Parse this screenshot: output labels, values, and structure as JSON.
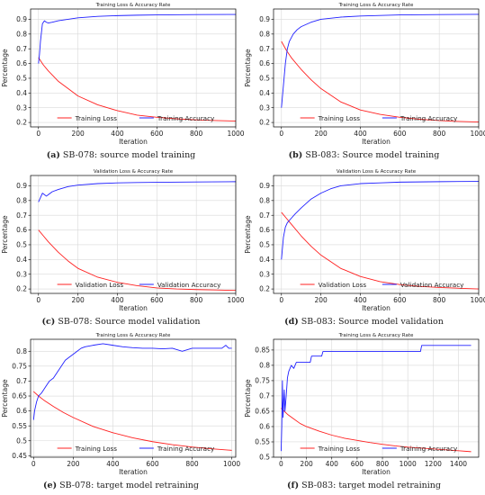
{
  "chart_data": [
    {
      "type": "line",
      "id": "a",
      "title": "Training Loss & Accuracy Rate",
      "xlabel": "Iteration",
      "ylabel": "Percentage",
      "xlim": [
        -40,
        1000
      ],
      "ylim": [
        0.17,
        0.97
      ],
      "xticks": [
        0,
        200,
        400,
        600,
        800,
        1000
      ],
      "yticks": [
        0.2,
        0.3,
        0.4,
        0.5,
        0.6,
        0.7,
        0.8,
        0.9
      ],
      "grid": true,
      "legend_position": "bottom-right",
      "caption_label": "(a)",
      "caption_text": " SB-078: source model training",
      "series": [
        {
          "name": "Training Loss",
          "color": "#ff2020",
          "x": [
            0,
            25,
            50,
            100,
            150,
            200,
            300,
            400,
            500,
            600,
            700,
            800,
            900,
            1000
          ],
          "y": [
            0.64,
            0.59,
            0.55,
            0.48,
            0.43,
            0.38,
            0.32,
            0.28,
            0.25,
            0.235,
            0.225,
            0.218,
            0.213,
            0.21
          ]
        },
        {
          "name": "Training Accuracy",
          "color": "#2020ff",
          "x": [
            0,
            5,
            10,
            20,
            30,
            40,
            50,
            70,
            100,
            150,
            200,
            300,
            400,
            500,
            600,
            800,
            1000
          ],
          "y": [
            0.6,
            0.66,
            0.75,
            0.87,
            0.89,
            0.88,
            0.875,
            0.88,
            0.89,
            0.9,
            0.91,
            0.92,
            0.925,
            0.928,
            0.93,
            0.932,
            0.933
          ]
        }
      ]
    },
    {
      "type": "line",
      "id": "b",
      "title": "Training Loss & Accuracy Rate",
      "xlabel": "Iteration",
      "ylabel": "Percentage",
      "xlim": [
        -40,
        1000
      ],
      "ylim": [
        0.17,
        0.97
      ],
      "xticks": [
        0,
        200,
        400,
        600,
        800,
        1000
      ],
      "yticks": [
        0.2,
        0.3,
        0.4,
        0.5,
        0.6,
        0.7,
        0.8,
        0.9
      ],
      "grid": true,
      "legend_position": "bottom-right",
      "caption_label": "(b)",
      "caption_text": " SB-083: Source model training",
      "series": [
        {
          "name": "Training Loss",
          "color": "#ff2020",
          "x": [
            0,
            25,
            50,
            100,
            150,
            200,
            300,
            400,
            500,
            600,
            700,
            800,
            900,
            1000
          ],
          "y": [
            0.75,
            0.69,
            0.64,
            0.56,
            0.49,
            0.43,
            0.34,
            0.285,
            0.255,
            0.235,
            0.222,
            0.213,
            0.207,
            0.203
          ]
        },
        {
          "name": "Training Accuracy",
          "color": "#2020ff",
          "x": [
            0,
            10,
            20,
            30,
            40,
            60,
            80,
            100,
            150,
            200,
            300,
            400,
            500,
            600,
            800,
            1000
          ],
          "y": [
            0.3,
            0.45,
            0.6,
            0.7,
            0.75,
            0.8,
            0.83,
            0.85,
            0.88,
            0.9,
            0.915,
            0.922,
            0.926,
            0.93,
            0.932,
            0.934
          ]
        }
      ]
    },
    {
      "type": "line",
      "id": "c",
      "title": "Validation Loss & Accuracy Rate",
      "xlabel": "Iteration",
      "ylabel": "Percentage",
      "xlim": [
        -40,
        1000
      ],
      "ylim": [
        0.17,
        0.97
      ],
      "xticks": [
        0,
        200,
        400,
        600,
        800,
        1000
      ],
      "yticks": [
        0.2,
        0.3,
        0.4,
        0.5,
        0.6,
        0.7,
        0.8,
        0.9
      ],
      "grid": true,
      "legend_position": "bottom-right",
      "caption_label": "(c)",
      "caption_text": " SB-078: Source model validation",
      "series": [
        {
          "name": "Validation Loss",
          "color": "#ff2020",
          "x": [
            0,
            25,
            50,
            100,
            150,
            200,
            300,
            400,
            500,
            600,
            700,
            800,
            900,
            1000
          ],
          "y": [
            0.6,
            0.56,
            0.52,
            0.45,
            0.39,
            0.34,
            0.28,
            0.245,
            0.222,
            0.207,
            0.2,
            0.196,
            0.193,
            0.19
          ]
        },
        {
          "name": "Validation Accuracy",
          "color": "#2020ff",
          "x": [
            0,
            10,
            20,
            30,
            40,
            50,
            70,
            100,
            150,
            200,
            300,
            400,
            500,
            600,
            800,
            1000
          ],
          "y": [
            0.79,
            0.82,
            0.85,
            0.84,
            0.83,
            0.84,
            0.86,
            0.875,
            0.895,
            0.905,
            0.915,
            0.92,
            0.922,
            0.924,
            0.926,
            0.928
          ]
        }
      ]
    },
    {
      "type": "line",
      "id": "d",
      "title": "Validation Loss & Accuracy Rate",
      "xlabel": "Iteration",
      "ylabel": "Percentage",
      "xlim": [
        -40,
        1000
      ],
      "ylim": [
        0.17,
        0.97
      ],
      "xticks": [
        0,
        200,
        400,
        600,
        800,
        1000
      ],
      "yticks": [
        0.2,
        0.3,
        0.4,
        0.5,
        0.6,
        0.7,
        0.8,
        0.9
      ],
      "grid": true,
      "legend_position": "bottom-right",
      "caption_label": "(d)",
      "caption_text": " SB-083: Source model validation",
      "series": [
        {
          "name": "Validation Loss",
          "color": "#ff2020",
          "x": [
            0,
            25,
            50,
            100,
            150,
            200,
            300,
            400,
            500,
            600,
            700,
            800,
            900,
            1000
          ],
          "y": [
            0.72,
            0.68,
            0.64,
            0.56,
            0.49,
            0.43,
            0.34,
            0.285,
            0.25,
            0.23,
            0.218,
            0.21,
            0.205,
            0.2
          ]
        },
        {
          "name": "Validation Accuracy",
          "color": "#2020ff",
          "x": [
            0,
            10,
            20,
            30,
            50,
            70,
            100,
            150,
            200,
            250,
            300,
            400,
            500,
            600,
            800,
            1000
          ],
          "y": [
            0.4,
            0.55,
            0.62,
            0.65,
            0.68,
            0.71,
            0.75,
            0.81,
            0.85,
            0.88,
            0.9,
            0.915,
            0.92,
            0.925,
            0.928,
            0.93
          ]
        }
      ]
    },
    {
      "type": "line",
      "id": "e",
      "title": "Training Loss & Accuracy Rate",
      "xlabel": "Iteration",
      "ylabel": "Percentage",
      "xlim": [
        -15,
        1020
      ],
      "ylim": [
        0.445,
        0.84
      ],
      "xticks": [
        0,
        200,
        400,
        600,
        800,
        1000
      ],
      "yticks": [
        0.45,
        0.5,
        0.55,
        0.6,
        0.65,
        0.7,
        0.75,
        0.8
      ],
      "grid": true,
      "legend_position": "bottom-right",
      "caption_label": "(e)",
      "caption_text": " SB-078: target model retraining",
      "series": [
        {
          "name": "Training Loss",
          "color": "#ff2020",
          "x": [
            0,
            25,
            50,
            100,
            150,
            200,
            300,
            400,
            500,
            600,
            700,
            800,
            900,
            1000
          ],
          "y": [
            0.665,
            0.65,
            0.637,
            0.615,
            0.595,
            0.578,
            0.548,
            0.527,
            0.51,
            0.497,
            0.487,
            0.479,
            0.473,
            0.468
          ]
        },
        {
          "name": "Training Accuracy",
          "color": "#2020ff",
          "x": [
            0,
            5,
            15,
            25,
            40,
            60,
            80,
            100,
            120,
            140,
            160,
            180,
            200,
            220,
            240,
            260,
            300,
            350,
            400,
            450,
            500,
            550,
            600,
            650,
            700,
            750,
            800,
            850,
            900,
            950,
            970,
            985,
            1000
          ],
          "y": [
            0.57,
            0.6,
            0.63,
            0.65,
            0.66,
            0.68,
            0.7,
            0.71,
            0.73,
            0.75,
            0.77,
            0.78,
            0.79,
            0.8,
            0.81,
            0.815,
            0.82,
            0.825,
            0.82,
            0.815,
            0.812,
            0.81,
            0.81,
            0.808,
            0.81,
            0.8,
            0.81,
            0.81,
            0.81,
            0.81,
            0.82,
            0.81,
            0.81
          ]
        }
      ]
    },
    {
      "type": "line",
      "id": "f",
      "title": "Training Loss & Accuracy Rate",
      "xlabel": "Iteration",
      "ylabel": "Percentage",
      "xlim": [
        -60,
        1560
      ],
      "ylim": [
        0.5,
        0.885
      ],
      "xticks": [
        0,
        200,
        400,
        600,
        800,
        1000,
        1200,
        1400
      ],
      "yticks": [
        0.5,
        0.55,
        0.6,
        0.65,
        0.7,
        0.75,
        0.8,
        0.85
      ],
      "grid": true,
      "legend_position": "bottom-right",
      "caption_label": "(f)",
      "caption_text": " SB-083: target model retraining",
      "series": [
        {
          "name": "Training Loss",
          "color": "#ff2020",
          "x": [
            0,
            25,
            50,
            100,
            150,
            200,
            300,
            400,
            500,
            600,
            700,
            800,
            900,
            1000,
            1100,
            1200,
            1300,
            1400,
            1500
          ],
          "y": [
            0.66,
            0.65,
            0.64,
            0.625,
            0.61,
            0.6,
            0.585,
            0.572,
            0.562,
            0.555,
            0.548,
            0.542,
            0.537,
            0.533,
            0.53,
            0.527,
            0.524,
            0.521,
            0.518
          ]
        },
        {
          "name": "Training Accuracy",
          "color": "#2020ff",
          "x": [
            0,
            5,
            10,
            15,
            20,
            25,
            30,
            40,
            50,
            60,
            70,
            80,
            100,
            120,
            150,
            200,
            230,
            240,
            320,
            330,
            1100,
            1110,
            1500
          ],
          "y": [
            0.52,
            0.6,
            0.75,
            0.63,
            0.68,
            0.72,
            0.65,
            0.7,
            0.76,
            0.78,
            0.79,
            0.8,
            0.79,
            0.81,
            0.81,
            0.81,
            0.81,
            0.83,
            0.83,
            0.845,
            0.845,
            0.865,
            0.865
          ]
        }
      ]
    }
  ]
}
